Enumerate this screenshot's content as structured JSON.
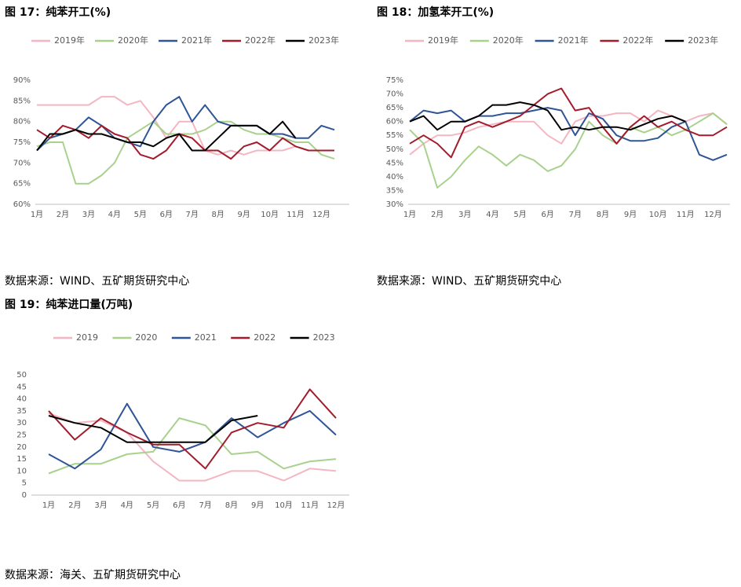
{
  "chart_data": [
    {
      "type": "line",
      "title": "图 17：纯苯开工(%)",
      "source": "数据来源：WIND、五矿期货研究中心",
      "categories": [
        "1月",
        null,
        "2月",
        null,
        "3月",
        null,
        "4月",
        null,
        "5月",
        null,
        "6月",
        null,
        "7月",
        null,
        "8月",
        null,
        "9月",
        null,
        "10月",
        null,
        "11月",
        null,
        "12月",
        null
      ],
      "ylim": [
        60,
        90
      ],
      "yticks": [
        {
          "value": 60,
          "label": "60%"
        },
        {
          "value": 65,
          "label": "65%"
        },
        {
          "value": 70,
          "label": "70%"
        },
        {
          "value": 75,
          "label": "75%"
        },
        {
          "value": 80,
          "label": "80%"
        },
        {
          "value": 85,
          "label": "85%"
        },
        {
          "value": 90,
          "label": "90%"
        }
      ],
      "series": [
        {
          "name": "2019年",
          "color": "#f4b6c2",
          "values": [
            84,
            84,
            84,
            84,
            84,
            86,
            86,
            84,
            85,
            81,
            76,
            80,
            80,
            73,
            72,
            73,
            72,
            73,
            73,
            73,
            74,
            73,
            73,
            73
          ]
        },
        {
          "name": "2020年",
          "color": "#a9d18e",
          "values": [
            74,
            75,
            75,
            65,
            65,
            67,
            70,
            76,
            78,
            80,
            77,
            77,
            77,
            78,
            80,
            80,
            78,
            77,
            77,
            76,
            75,
            75,
            72,
            71
          ]
        },
        {
          "name": "2021年",
          "color": "#2f5597",
          "values": [
            73,
            76,
            77,
            78,
            81,
            79,
            76,
            75,
            74,
            80,
            84,
            86,
            80,
            84,
            80,
            79,
            79,
            79,
            77,
            77,
            76,
            76,
            79,
            78
          ]
        },
        {
          "name": "2022年",
          "color": "#a21c2c",
          "values": [
            78,
            76,
            79,
            78,
            76,
            79,
            77,
            76,
            72,
            71,
            73,
            77,
            76,
            73,
            73,
            71,
            74,
            75,
            73,
            76,
            74,
            73,
            73,
            73
          ]
        },
        {
          "name": "2023年",
          "color": "#000000",
          "values": [
            73,
            77,
            77,
            78,
            77,
            77,
            76,
            75,
            75,
            74,
            76,
            77,
            73,
            73,
            76,
            79,
            79,
            79,
            77,
            80,
            76,
            null,
            null,
            null
          ]
        }
      ]
    },
    {
      "type": "line",
      "title": "图 18：加氢苯开工(%)",
      "source": "数据来源：WIND、五矿期货研究中心",
      "categories": [
        "1月",
        null,
        "2月",
        null,
        "3月",
        null,
        "4月",
        null,
        "5月",
        null,
        "6月",
        null,
        "7月",
        null,
        "8月",
        null,
        "9月",
        null,
        "10月",
        null,
        "11月",
        null,
        "12月",
        null
      ],
      "ylim": [
        30,
        75
      ],
      "yticks": [
        {
          "value": 30,
          "label": "30%"
        },
        {
          "value": 35,
          "label": "35%"
        },
        {
          "value": 40,
          "label": "40%"
        },
        {
          "value": 45,
          "label": "45%"
        },
        {
          "value": 50,
          "label": "50%"
        },
        {
          "value": 55,
          "label": "55%"
        },
        {
          "value": 60,
          "label": "60%"
        },
        {
          "value": 65,
          "label": "65%"
        },
        {
          "value": 70,
          "label": "70%"
        },
        {
          "value": 75,
          "label": "75%"
        }
      ],
      "series": [
        {
          "name": "2019年",
          "color": "#f4b6c2",
          "values": [
            48,
            52,
            55,
            55,
            56,
            58,
            59,
            60,
            60,
            60,
            55,
            52,
            60,
            62,
            62,
            63,
            63,
            60,
            64,
            62,
            60,
            62,
            63,
            59
          ]
        },
        {
          "name": "2020年",
          "color": "#a9d18e",
          "values": [
            57,
            52,
            36,
            40,
            46,
            51,
            48,
            44,
            48,
            46,
            42,
            44,
            50,
            60,
            55,
            52,
            58,
            56,
            58,
            55,
            57,
            60,
            63,
            59
          ]
        },
        {
          "name": "2021年",
          "color": "#2f5597",
          "values": [
            60,
            64,
            63,
            64,
            60,
            62,
            62,
            63,
            63,
            64,
            65,
            64,
            55,
            63,
            61,
            55,
            53,
            53,
            54,
            58,
            60,
            48,
            46,
            48
          ]
        },
        {
          "name": "2022年",
          "color": "#a21c2c",
          "values": [
            52,
            55,
            52,
            47,
            58,
            60,
            58,
            60,
            62,
            66,
            70,
            72,
            64,
            65,
            58,
            52,
            58,
            62,
            58,
            60,
            57,
            55,
            55,
            58
          ]
        },
        {
          "name": "2023年",
          "color": "#000000",
          "values": [
            60,
            62,
            57,
            60,
            60,
            62,
            66,
            66,
            67,
            66,
            64,
            57,
            58,
            57,
            58,
            58,
            57,
            59,
            61,
            62,
            60,
            null,
            null,
            null
          ]
        }
      ]
    },
    {
      "type": "line",
      "title": "图 19：纯苯进口量(万吨)",
      "source": "数据来源：海关、五矿期货研究中心",
      "categories": [
        "1月",
        "2月",
        "3月",
        "4月",
        "5月",
        "6月",
        "7月",
        "8月",
        "9月",
        "10月",
        "11月",
        "12月"
      ],
      "ylim": [
        0,
        50
      ],
      "yticks": [
        0,
        5,
        10,
        15,
        20,
        25,
        30,
        35,
        40,
        45,
        50
      ],
      "series": [
        {
          "name": "2019",
          "color": "#f4b6c2",
          "values": [
            34,
            30,
            31,
            26,
            14,
            6,
            6,
            10,
            10,
            6,
            11,
            10
          ]
        },
        {
          "name": "2020",
          "color": "#a9d18e",
          "values": [
            9,
            13,
            13,
            17,
            18,
            32,
            29,
            17,
            18,
            11,
            14,
            15
          ]
        },
        {
          "name": "2021",
          "color": "#2f5597",
          "values": [
            17,
            11,
            19,
            38,
            20,
            18,
            22,
            32,
            24,
            30,
            35,
            25
          ]
        },
        {
          "name": "2022",
          "color": "#a21c2c",
          "values": [
            35,
            23,
            32,
            26,
            21,
            21,
            11,
            26,
            30,
            28,
            44,
            32
          ]
        },
        {
          "name": "2023",
          "color": "#000000",
          "values": [
            33,
            30,
            28,
            22,
            22,
            22,
            22,
            31,
            33,
            null,
            null,
            null
          ]
        }
      ]
    }
  ]
}
